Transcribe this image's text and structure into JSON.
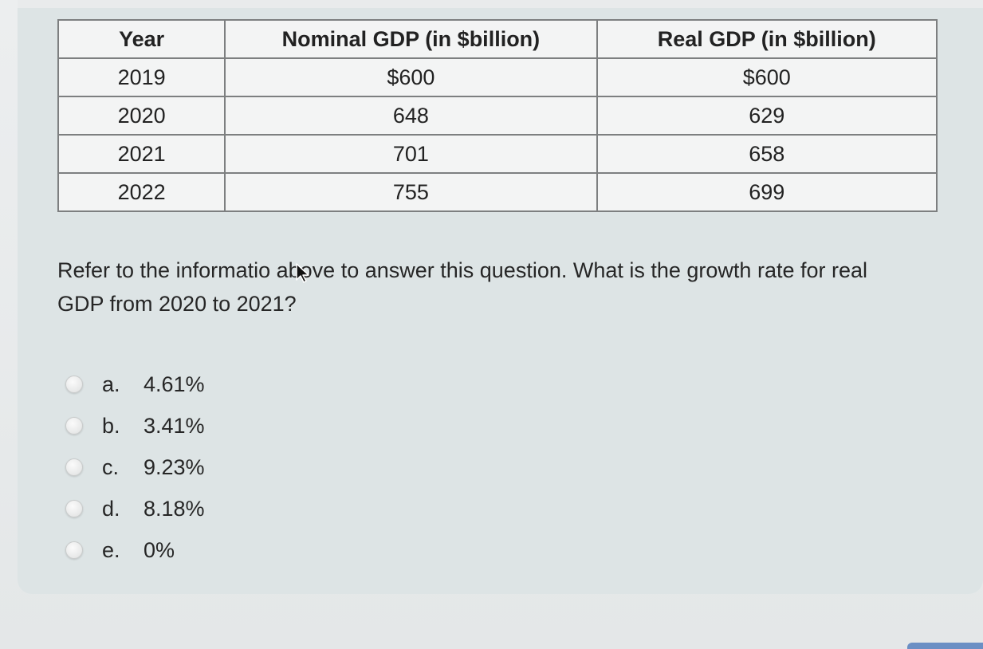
{
  "table": {
    "headers": [
      "Year",
      "Nominal GDP (in $billion)",
      "Real GDP (in $billion)"
    ],
    "rows": [
      [
        "2019",
        "$600",
        "$600"
      ],
      [
        "2020",
        "648",
        "629"
      ],
      [
        "2021",
        "701",
        "658"
      ],
      [
        "2022",
        "755",
        "699"
      ]
    ]
  },
  "question": {
    "line1": "Refer to the informatio   above to answer this question. What is the growth rate for real",
    "line2": "GDP from 2020 to 2021?"
  },
  "options": [
    {
      "letter": "a.",
      "value": "4.61%"
    },
    {
      "letter": "b.",
      "value": "3.41%"
    },
    {
      "letter": "c.",
      "value": "9.23%"
    },
    {
      "letter": "d.",
      "value": "8.18%"
    },
    {
      "letter": "e.",
      "value": "0%"
    }
  ]
}
